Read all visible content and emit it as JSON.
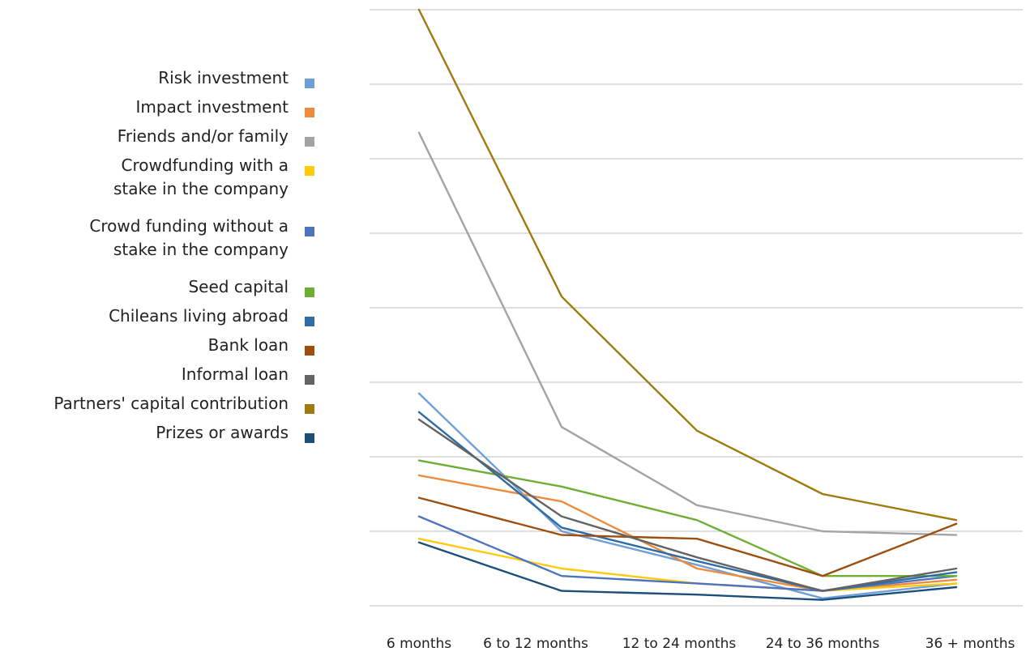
{
  "chart_data": {
    "type": "line",
    "title": "",
    "xlabel": "",
    "ylabel": "",
    "categories": [
      "6 months",
      "6 to 12 months",
      "12 to 24 months",
      "24 to 36 months",
      "36 + months"
    ],
    "ylim": [
      0,
      8
    ],
    "grid": true,
    "legend_position": "left",
    "series": [
      {
        "name": "Risk investment",
        "color": "#6F9FD8",
        "values": [
          2.85,
          1.0,
          0.55,
          0.1,
          0.3
        ]
      },
      {
        "name": "Impact investment",
        "color": "#ED8B3C",
        "values": [
          1.75,
          1.4,
          0.5,
          0.2,
          0.35
        ]
      },
      {
        "name": "Friends and/or family",
        "color": "#A3A3A3",
        "values": [
          6.35,
          2.4,
          1.35,
          1.0,
          0.95
        ]
      },
      {
        "name": [
          "Crowdfunding with a",
          "stake in the company"
        ],
        "color": "#FFC90E",
        "values": [
          0.9,
          0.5,
          0.3,
          0.2,
          0.3
        ]
      },
      {
        "name": [
          "Crowd funding without a",
          "stake in the company"
        ],
        "color": "#4E74BE",
        "values": [
          1.2,
          0.4,
          0.3,
          0.2,
          0.4
        ]
      },
      {
        "name": "Seed capital",
        "color": "#6EAE35",
        "values": [
          1.95,
          1.6,
          1.15,
          0.4,
          0.4
        ]
      },
      {
        "name": "Chileans living abroad",
        "color": "#2F6CA3",
        "values": [
          2.6,
          1.05,
          0.6,
          0.2,
          0.45
        ]
      },
      {
        "name": "Bank loan",
        "color": "#9E4F0F",
        "values": [
          1.45,
          0.95,
          0.9,
          0.4,
          1.1
        ]
      },
      {
        "name": "Informal loan",
        "color": "#636363",
        "values": [
          2.5,
          1.2,
          0.65,
          0.2,
          0.5
        ]
      },
      {
        "name": "Partners' capital contribution",
        "color": "#9E7A10",
        "values": [
          8.0,
          4.15,
          2.35,
          1.5,
          1.15
        ]
      },
      {
        "name": "Prizes or awards",
        "color": "#1B4F7A",
        "values": [
          0.85,
          0.2,
          0.15,
          0.08,
          0.25
        ]
      }
    ]
  }
}
